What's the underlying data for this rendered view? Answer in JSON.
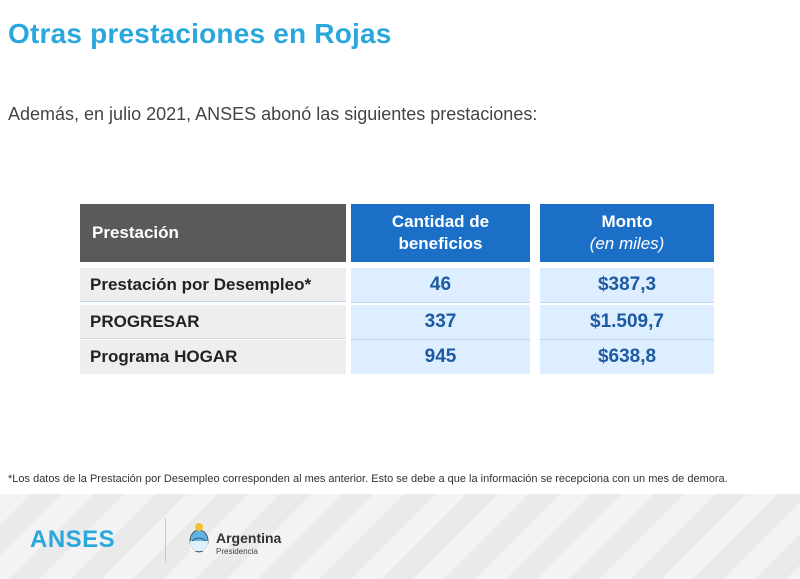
{
  "title": "Otras prestaciones en Rojas",
  "intro": "Además, en julio 2021, ANSES abonó las siguientes prestaciones:",
  "table": {
    "headers": {
      "prestacion": "Prestación",
      "cantidad_line1": "Cantidad de",
      "cantidad_line2": "beneficios",
      "monto": "Monto",
      "monto_sub": "(en miles)"
    },
    "rows": [
      {
        "name": "Prestación por Desempleo*",
        "cantidad": "46",
        "monto": "$387,3"
      },
      {
        "name": "PROGRESAR",
        "cantidad": "337",
        "monto": "$1.509,7"
      },
      {
        "name": "Programa HOGAR",
        "cantidad": "945",
        "monto": "$638,8"
      }
    ]
  },
  "footnote": "*Los datos de la Prestación por Desempleo corresponden al mes anterior. Esto se debe a que la información se recepciona con un mes de demora.",
  "footer": {
    "anses_logo": "ANSES",
    "argentina_title": "Argentina",
    "argentina_sub": "Presidencia"
  },
  "colors": {
    "accent": "#2aa7dd",
    "header_gray": "#5a5a5a",
    "header_blue": "#1b6fc6",
    "cell_blue": "#dceeff",
    "value_blue": "#1d5aa3"
  }
}
